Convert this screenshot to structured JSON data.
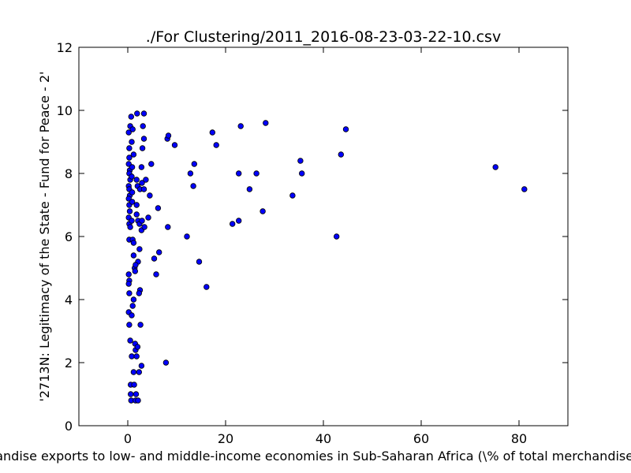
{
  "chart_data": {
    "type": "scatter",
    "title": "./For Clustering/2011_2016-08-23-03-22-10.csv",
    "xlabel": "Merchandise exports to low- and middle-income economies in Sub-Saharan Africa  (\\% of total merchandise exports)",
    "ylabel": "'2713N: Legitimacy of the State - Fund for Peace - 2'",
    "xlim": [
      -10,
      90
    ],
    "ylim": [
      0,
      12
    ],
    "xticks": [
      0,
      20,
      40,
      60,
      80
    ],
    "yticks": [
      0,
      2,
      4,
      6,
      8,
      10,
      12
    ],
    "grid": false,
    "marker_color": "#0000ff",
    "marker_edge": "#000000",
    "points": [
      [
        0.2,
        9.3
      ],
      [
        0.3,
        8.8
      ],
      [
        0.3,
        8.5
      ],
      [
        0.2,
        8.3
      ],
      [
        0.4,
        8.1
      ],
      [
        0.3,
        8.0
      ],
      [
        0.5,
        7.8
      ],
      [
        0.2,
        7.6
      ],
      [
        0.3,
        7.5
      ],
      [
        0.4,
        7.3
      ],
      [
        0.2,
        7.2
      ],
      [
        0.3,
        7.0
      ],
      [
        0.4,
        6.8
      ],
      [
        0.2,
        6.6
      ],
      [
        0.3,
        6.4
      ],
      [
        0.5,
        6.3
      ],
      [
        0.3,
        5.9
      ],
      [
        0.2,
        4.8
      ],
      [
        0.3,
        4.6
      ],
      [
        0.2,
        4.5
      ],
      [
        0.3,
        4.2
      ],
      [
        0.2,
        3.6
      ],
      [
        0.3,
        3.2
      ],
      [
        0.5,
        2.7
      ],
      [
        0.5,
        9.5
      ],
      [
        0.7,
        9.8
      ],
      [
        1.0,
        9.4
      ],
      [
        0.8,
        9.0
      ],
      [
        1.2,
        8.6
      ],
      [
        0.9,
        8.2
      ],
      [
        0.8,
        7.9
      ],
      [
        0.9,
        7.4
      ],
      [
        0.9,
        7.1
      ],
      [
        0.8,
        6.5
      ],
      [
        1.0,
        5.9
      ],
      [
        1.2,
        5.8
      ],
      [
        1.2,
        5.4
      ],
      [
        1.4,
        5.0
      ],
      [
        1.5,
        4.9
      ],
      [
        1.0,
        3.8
      ],
      [
        1.2,
        4.0
      ],
      [
        0.8,
        3.5
      ],
      [
        0.8,
        2.2
      ],
      [
        0.6,
        1.3
      ],
      [
        0.6,
        1.0
      ],
      [
        0.7,
        0.8
      ],
      [
        1.5,
        2.6
      ],
      [
        1.6,
        2.4
      ],
      [
        1.2,
        1.7
      ],
      [
        1.8,
        2.2
      ],
      [
        1.3,
        1.3
      ],
      [
        1.7,
        1.0
      ],
      [
        1.6,
        0.8
      ],
      [
        2.1,
        0.8
      ],
      [
        1.9,
        9.9
      ],
      [
        3.3,
        9.9
      ],
      [
        3.1,
        9.5
      ],
      [
        3.3,
        9.1
      ],
      [
        3.0,
        8.8
      ],
      [
        2.8,
        8.2
      ],
      [
        1.8,
        7.8
      ],
      [
        2.0,
        7.6
      ],
      [
        2.5,
        7.5
      ],
      [
        2.9,
        7.7
      ],
      [
        3.3,
        7.5
      ],
      [
        3.7,
        7.8
      ],
      [
        1.8,
        7.0
      ],
      [
        1.8,
        6.7
      ],
      [
        2.1,
        6.5
      ],
      [
        2.4,
        6.4
      ],
      [
        2.9,
        6.5
      ],
      [
        2.8,
        6.2
      ],
      [
        3.4,
        6.3
      ],
      [
        2.4,
        5.6
      ],
      [
        2.1,
        5.2
      ],
      [
        1.6,
        5.1
      ],
      [
        2.5,
        4.3
      ],
      [
        2.3,
        4.2
      ],
      [
        2.0,
        2.5
      ],
      [
        2.3,
        1.7
      ],
      [
        2.6,
        3.2
      ],
      [
        2.8,
        1.9
      ],
      [
        4.8,
        8.3
      ],
      [
        4.5,
        7.3
      ],
      [
        4.2,
        6.6
      ],
      [
        6.2,
        6.9
      ],
      [
        6.4,
        5.5
      ],
      [
        5.4,
        5.3
      ],
      [
        5.8,
        4.8
      ],
      [
        8.1,
        9.1
      ],
      [
        8.3,
        9.2
      ],
      [
        9.6,
        8.9
      ],
      [
        8.2,
        6.3
      ],
      [
        7.8,
        2.0
      ],
      [
        12.8,
        8.0
      ],
      [
        13.6,
        8.3
      ],
      [
        13.4,
        7.6
      ],
      [
        12.1,
        6.0
      ],
      [
        14.6,
        5.2
      ],
      [
        16.1,
        4.4
      ],
      [
        17.3,
        9.3
      ],
      [
        18.1,
        8.9
      ],
      [
        23.1,
        9.5
      ],
      [
        22.7,
        8.0
      ],
      [
        26.3,
        8.0
      ],
      [
        24.9,
        7.5
      ],
      [
        21.4,
        6.4
      ],
      [
        22.7,
        6.5
      ],
      [
        27.6,
        6.8
      ],
      [
        28.2,
        9.6
      ],
      [
        35.3,
        8.4
      ],
      [
        35.6,
        8.0
      ],
      [
        33.7,
        7.3
      ],
      [
        44.6,
        9.4
      ],
      [
        43.6,
        8.6
      ],
      [
        42.7,
        6.0
      ],
      [
        75.2,
        8.2
      ],
      [
        81.1,
        7.5
      ]
    ]
  }
}
